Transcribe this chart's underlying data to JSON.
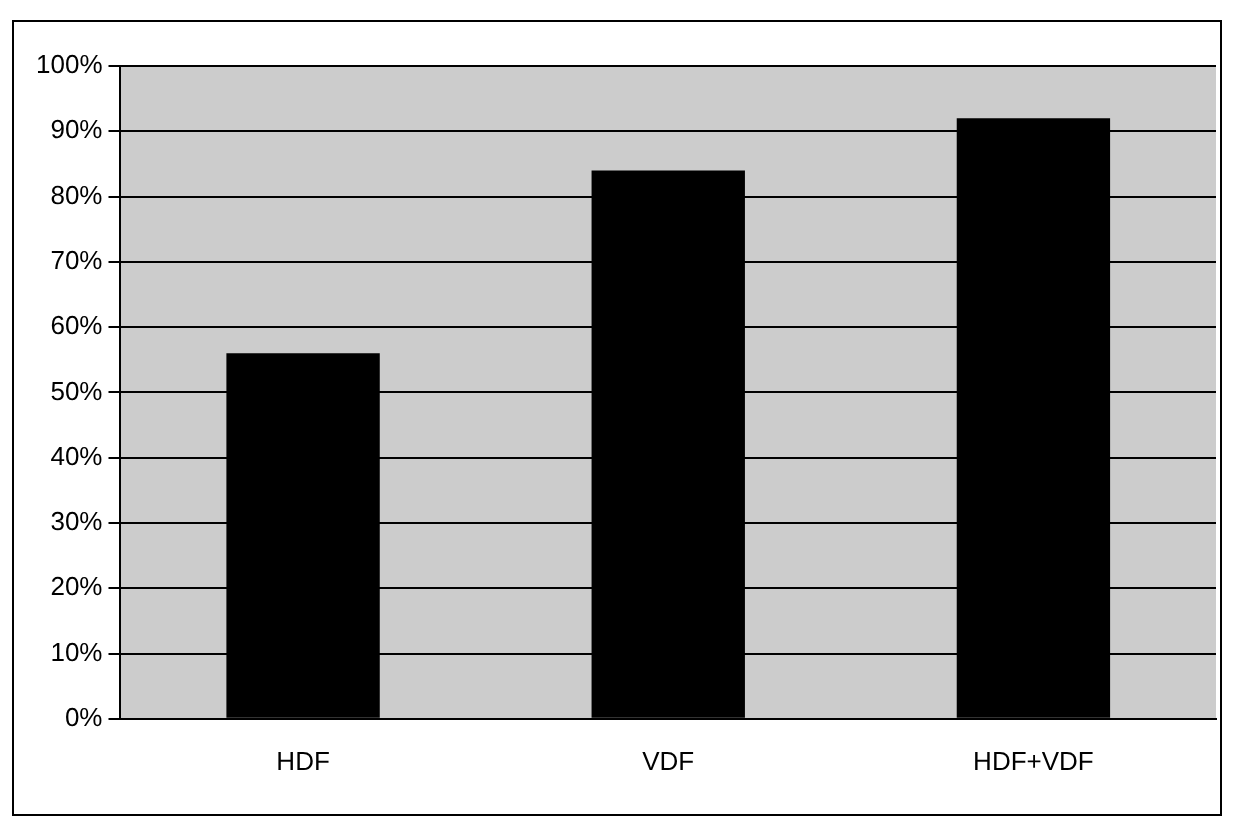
{
  "chart_data": {
    "type": "bar",
    "categories": [
      "HDF",
      "VDF",
      "HDF+VDF"
    ],
    "values": [
      56,
      84,
      92
    ],
    "color": "#000000",
    "ylim": [
      0,
      100
    ],
    "yticks": [
      {
        "value": 0,
        "label": "0%"
      },
      {
        "value": 10,
        "label": "10%"
      },
      {
        "value": 20,
        "label": "20%"
      },
      {
        "value": 30,
        "label": "30%"
      },
      {
        "value": 40,
        "label": "40%"
      },
      {
        "value": 50,
        "label": "50%"
      },
      {
        "value": 60,
        "label": "60%"
      },
      {
        "value": 70,
        "label": "70%"
      },
      {
        "value": 80,
        "label": "80%"
      },
      {
        "value": 90,
        "label": "90%"
      },
      {
        "value": 100,
        "label": "100%"
      }
    ],
    "grid": "y",
    "legend": false
  }
}
